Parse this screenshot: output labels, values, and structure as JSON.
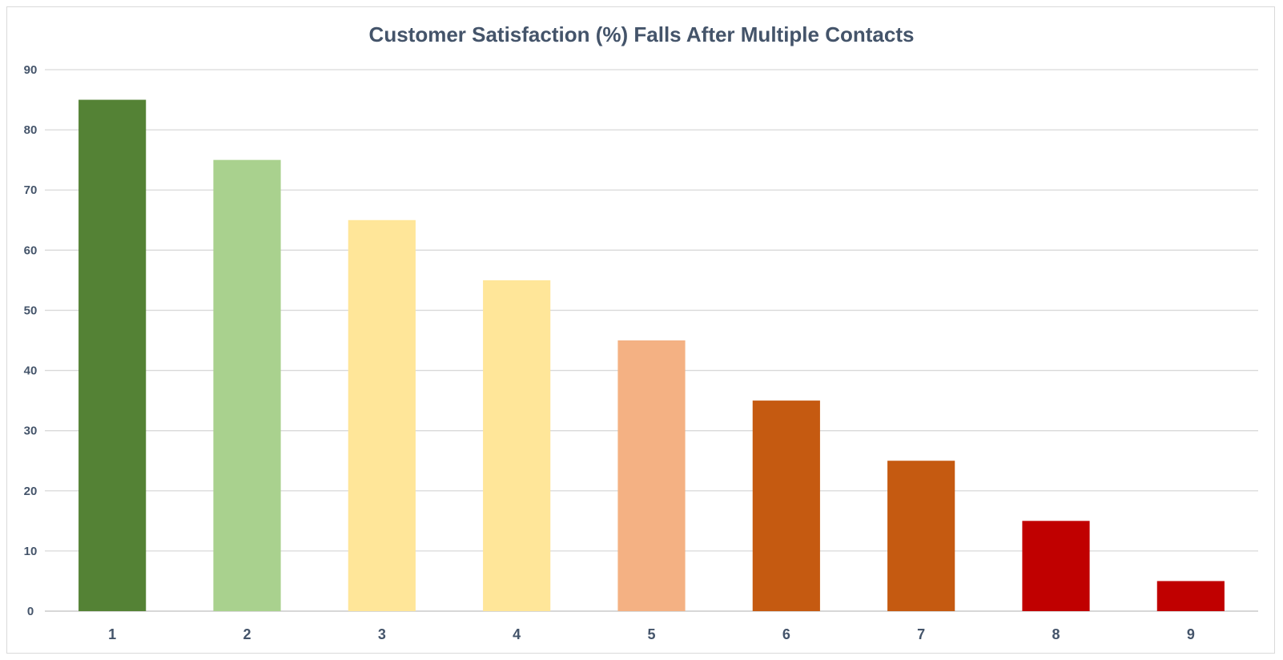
{
  "chart_data": {
    "type": "bar",
    "title": "Customer Satisfaction (%) Falls After Multiple Contacts",
    "xlabel": "",
    "ylabel": "",
    "categories": [
      "1",
      "2",
      "3",
      "4",
      "5",
      "6",
      "7",
      "8",
      "9"
    ],
    "values": [
      85,
      75,
      65,
      55,
      45,
      35,
      25,
      15,
      5
    ],
    "colors": [
      "#548235",
      "#a9d18e",
      "#ffe699",
      "#ffe699",
      "#f4b183",
      "#c55a11",
      "#c55a11",
      "#c00000",
      "#c00000"
    ],
    "ylim": [
      0,
      90
    ],
    "yticks": [
      0,
      10,
      20,
      30,
      40,
      50,
      60,
      70,
      80,
      90
    ],
    "grid": true,
    "legend": "none"
  }
}
